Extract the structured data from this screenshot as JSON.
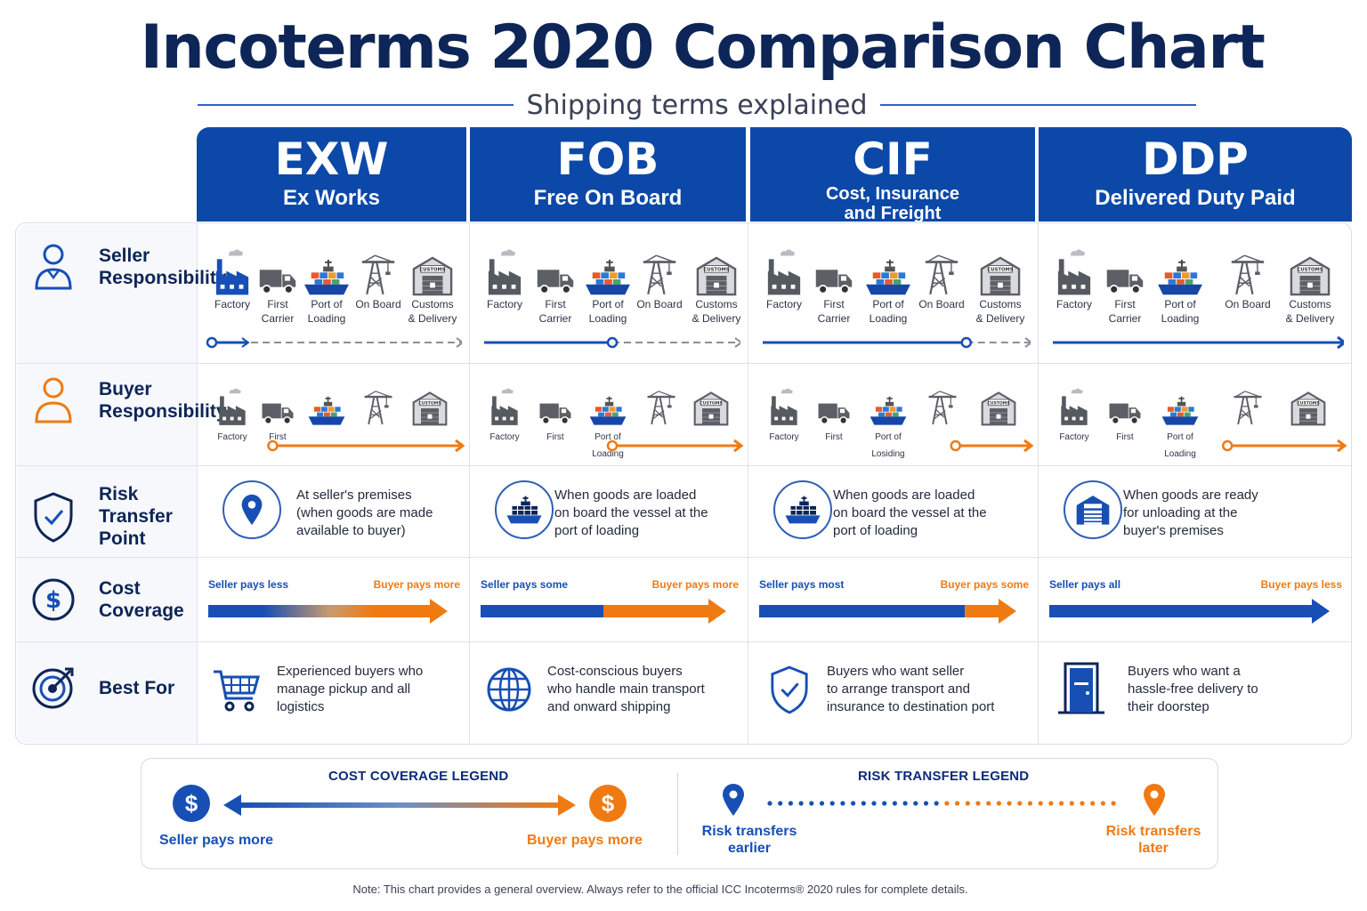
{
  "title": "Incoterms 2020 Comparison Chart",
  "subtitle": "Shipping terms explained",
  "colors": {
    "navy": "#0d2557",
    "header_blue": "#0c48a8",
    "seller_blue": "#174fb5",
    "buyer_orange": "#f07a12",
    "gray_icon": "#5c5f66"
  },
  "terms": [
    {
      "code": "EXW",
      "name": "Ex Works"
    },
    {
      "code": "FOB",
      "name": "Free On Board"
    },
    {
      "code": "CIF",
      "name_line1": "Cost, Insurance",
      "name_line2": "and Freight"
    },
    {
      "code": "DDP",
      "name": "Delivered Duty Paid"
    }
  ],
  "rows": {
    "seller": {
      "line1": "Seller",
      "line2": "Responsibility",
      "icon": "person-icon"
    },
    "buyer": {
      "line1": "Buyer",
      "line2": "Responsibility",
      "icon": "person-icon"
    },
    "risk": {
      "line1": "Risk Transfer",
      "line2": "Point",
      "icon": "shield-check-icon"
    },
    "cost": {
      "line1": "Cost",
      "line2": "Coverage",
      "icon": "dollar-icon"
    },
    "best": {
      "line1": "Best For",
      "icon": "target-icon"
    }
  },
  "seller_steps": {
    "factory": "Factory",
    "first1": "First",
    "first2": "Carrier",
    "port1": "Port of",
    "port2": "Loading",
    "onboard": "On Board",
    "cust1": "Customs",
    "cust2": "& Delivery"
  },
  "buyer_steps": {
    "factory": "Factory",
    "first": "First",
    "port1": "Port of",
    "port2": "Loading",
    "port2_cif": "Losiding"
  },
  "customs_sign": "CUSTOMS",
  "risk": [
    {
      "line1": "At seller's premises",
      "line2": "(when goods are made",
      "line3": "available to buyer)",
      "icon": "location-pin-icon"
    },
    {
      "line1": "When goods are loaded",
      "line2": "on board the vessel at the",
      "line3": "port of loading",
      "icon": "ship-icon"
    },
    {
      "line1": "When goods are loaded",
      "line2": "on board the vessel at the",
      "line3": "port of loading",
      "icon": "ship-icon"
    },
    {
      "line1": "When goods are ready",
      "line2": "for unloading at the",
      "line3": "buyer's premises",
      "icon": "warehouse-icon"
    }
  ],
  "cost": [
    {
      "left": "Seller pays less",
      "right": "Buyer pays more",
      "seller_share": 0.2
    },
    {
      "left": "Seller pays some",
      "right": "Buyer pays more",
      "seller_share": 0.5
    },
    {
      "left": "Seller pays most",
      "right": "Buyer pays some",
      "seller_share": 0.8
    },
    {
      "left": "Seller pays all",
      "right": "Buyer pays less",
      "seller_share": 1.0
    }
  ],
  "best": [
    {
      "line1": "Experienced buyers who",
      "line2": "manage pickup and all",
      "line3": "logistics",
      "icon": "shopping-cart-icon"
    },
    {
      "line1": "Cost-conscious buyers",
      "line2": "who handle main transport",
      "line3": "and onward shipping",
      "icon": "globe-icon"
    },
    {
      "line1": "Buyers who want seller",
      "line2": "to arrange transport and",
      "line3": "insurance to destination port",
      "icon": "shield-check-icon"
    },
    {
      "line1": "Buyers who want a",
      "line2": "hassle-free delivery to",
      "line3": "their doorstep",
      "icon": "door-icon"
    }
  ],
  "legend": {
    "cost_title": "COST COVERAGE LEGEND",
    "seller_more": "Seller pays more",
    "buyer_more": "Buyer pays more",
    "risk_title": "RISK TRANSFER LEGEND",
    "earlier1": "Risk transfers",
    "earlier2": "earlier",
    "later1": "Risk transfers",
    "later2": "later",
    "dollar": "$"
  },
  "note": "Note: This chart provides a general overview. Always refer to the official ICC Incoterms® 2020 rules for complete details."
}
